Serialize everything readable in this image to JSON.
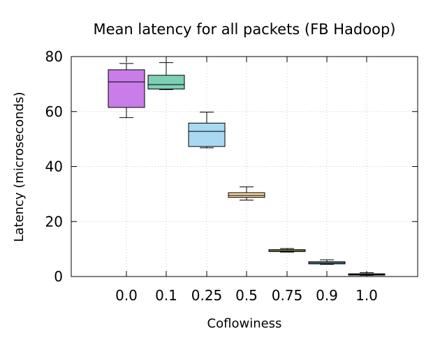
{
  "chart_data": {
    "type": "box",
    "title": "Mean latency for all packets (FB Hadoop)",
    "xlabel": "Coflowiness",
    "ylabel": "Latency (microseconds)",
    "ylim": [
      0,
      80
    ],
    "yticks": [
      0,
      20,
      40,
      60,
      80
    ],
    "grid": true,
    "categories": [
      "0.0",
      "0.1",
      "0.25",
      "0.5",
      "0.75",
      "0.9",
      "1.0"
    ],
    "boxes": [
      {
        "category": "0.0",
        "min": 57.8,
        "q1": 61.5,
        "median": 70.8,
        "q3": 75.2,
        "max": 77.5,
        "color": "#c87de8"
      },
      {
        "category": "0.1",
        "min": 68.0,
        "q1": 68.2,
        "median": 69.8,
        "q3": 73.2,
        "max": 77.8,
        "color": "#7dcfb6"
      },
      {
        "category": "0.25",
        "min": 46.8,
        "q1": 47.3,
        "median": 52.8,
        "q3": 55.8,
        "max": 59.8,
        "color": "#a9d8f2"
      },
      {
        "category": "0.5",
        "min": 27.8,
        "q1": 28.8,
        "median": 29.5,
        "q3": 30.5,
        "max": 32.6,
        "color": "#f6d7a0"
      },
      {
        "category": "0.75",
        "min": 8.9,
        "q1": 9.1,
        "median": 9.4,
        "q3": 9.8,
        "max": 10.2,
        "color": "#f8ee9e"
      },
      {
        "category": "0.9",
        "min": 4.4,
        "q1": 4.6,
        "median": 5.0,
        "q3": 5.4,
        "max": 6.1,
        "color": "#84c2e6"
      },
      {
        "category": "1.0",
        "min": 0.4,
        "q1": 0.5,
        "median": 0.8,
        "q3": 1.0,
        "max": 1.4,
        "color": "#4b6fb5"
      }
    ]
  }
}
